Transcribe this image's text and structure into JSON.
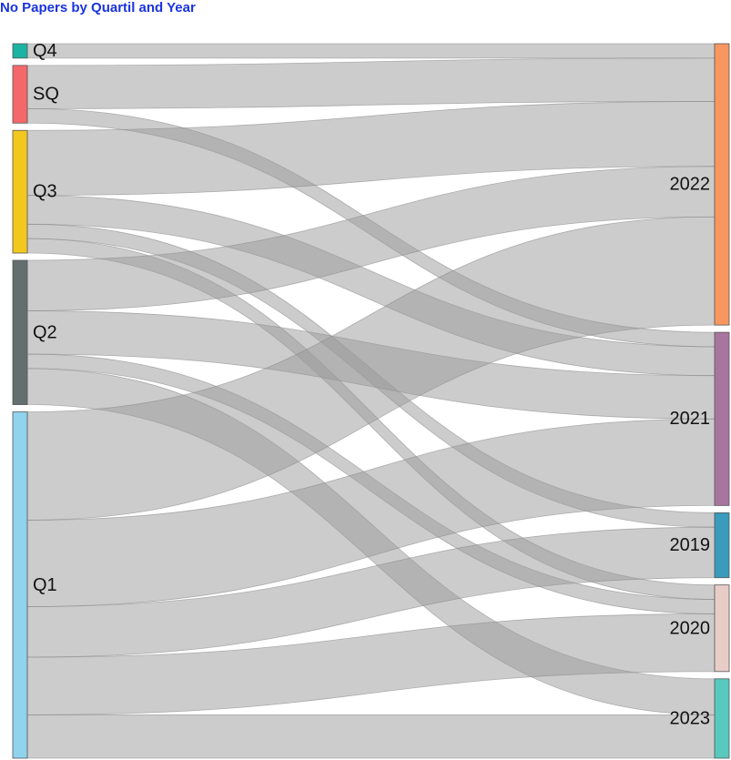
{
  "chart_data": {
    "type": "sankey",
    "title": "No Papers by Quartil and Year",
    "sources": [
      {
        "id": "Q4",
        "label": "Q4",
        "color": "#1bb3a3"
      },
      {
        "id": "SQ",
        "label": "SQ",
        "color": "#f4686a"
      },
      {
        "id": "Q3",
        "label": "Q3",
        "color": "#f2c81e"
      },
      {
        "id": "Q2",
        "label": "Q2",
        "color": "#636f6f"
      },
      {
        "id": "Q1",
        "label": "Q1",
        "color": "#8fd3ec"
      }
    ],
    "targets": [
      {
        "id": "2022",
        "label": "2022",
        "color": "#f7975f"
      },
      {
        "id": "2021",
        "label": "2021",
        "color": "#a8759e"
      },
      {
        "id": "2019",
        "label": "2019",
        "color": "#3a9bbd"
      },
      {
        "id": "2020",
        "label": "2020",
        "color": "#e8cdc6"
      },
      {
        "id": "2023",
        "label": "2023",
        "color": "#57c9be"
      }
    ],
    "links": [
      {
        "source": "Q4",
        "target": "2022",
        "value": 2
      },
      {
        "source": "SQ",
        "target": "2022",
        "value": 6
      },
      {
        "source": "SQ",
        "target": "2021",
        "value": 2
      },
      {
        "source": "Q3",
        "target": "2022",
        "value": 9
      },
      {
        "source": "Q3",
        "target": "2021",
        "value": 4
      },
      {
        "source": "Q3",
        "target": "2019",
        "value": 2
      },
      {
        "source": "Q3",
        "target": "2020",
        "value": 2
      },
      {
        "source": "Q2",
        "target": "2022",
        "value": 7
      },
      {
        "source": "Q2",
        "target": "2021",
        "value": 6
      },
      {
        "source": "Q2",
        "target": "2020",
        "value": 2
      },
      {
        "source": "Q2",
        "target": "2023",
        "value": 5
      },
      {
        "source": "Q1",
        "target": "2022",
        "value": 15
      },
      {
        "source": "Q1",
        "target": "2021",
        "value": 12
      },
      {
        "source": "Q1",
        "target": "2019",
        "value": 7
      },
      {
        "source": "Q1",
        "target": "2020",
        "value": 8
      },
      {
        "source": "Q1",
        "target": "2023",
        "value": 6
      }
    ]
  }
}
